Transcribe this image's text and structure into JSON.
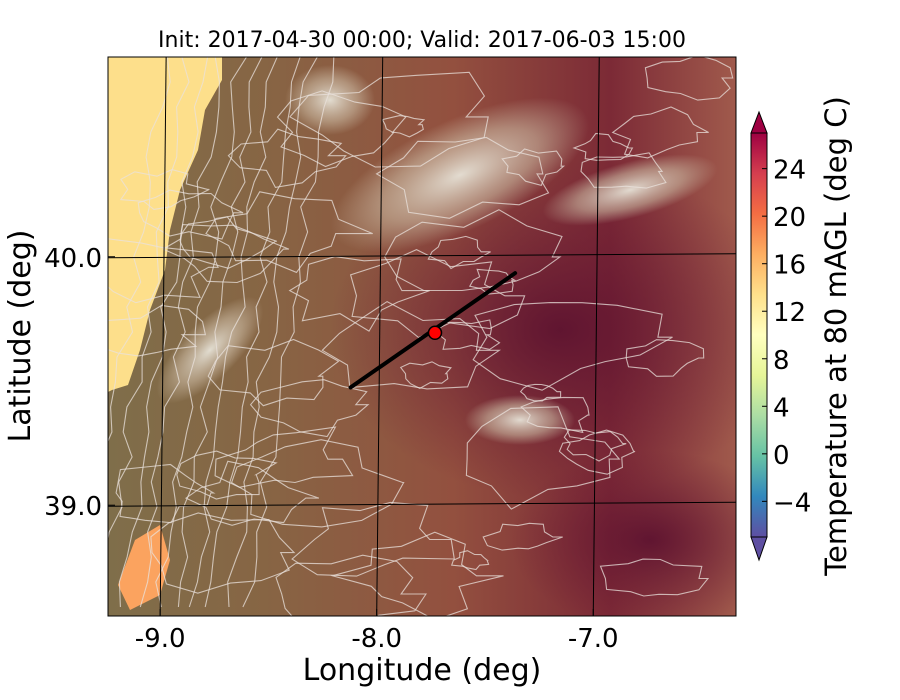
{
  "chart_data": {
    "type": "heatmap",
    "title": "Init: 2017-04-30 00:00; Valid: 2017-06-03 15:00",
    "xlabel": "Longitude (deg)",
    "ylabel": "Latitude (deg)",
    "xlim": [
      -9.25,
      -6.35
    ],
    "ylim": [
      38.55,
      40.8
    ],
    "xticks": [
      -9.0,
      -8.0,
      -7.0
    ],
    "xtick_labels": [
      "-9.0",
      "-8.0",
      "-7.0"
    ],
    "yticks": [
      39.0,
      40.0
    ],
    "ytick_labels": [
      "39.0",
      "40.0"
    ],
    "grid": true,
    "colorbar": {
      "label": "Temperature at 80 mAGL (deg C)",
      "min": -7,
      "max": 27,
      "extend": "both",
      "ticks": [
        -4,
        0,
        4,
        8,
        12,
        16,
        20,
        24
      ],
      "tick_labels": [
        "−4",
        "0",
        "4",
        "8",
        "12",
        "16",
        "20",
        "24"
      ]
    },
    "annotations": {
      "transect_line": {
        "start": [
          -8.13,
          39.47
        ],
        "end": [
          -7.37,
          39.93
        ],
        "color": "#000000"
      },
      "marker": {
        "lon": -7.74,
        "lat": 39.69,
        "color": "#ff0000"
      }
    },
    "colors": {
      "ocean": "#fddf8b",
      "coast_warm": "#7f6e4a",
      "inland": "#94503f",
      "interior_hot": "#6e1a34",
      "terrain_highlight": "#d8d2c4"
    }
  }
}
